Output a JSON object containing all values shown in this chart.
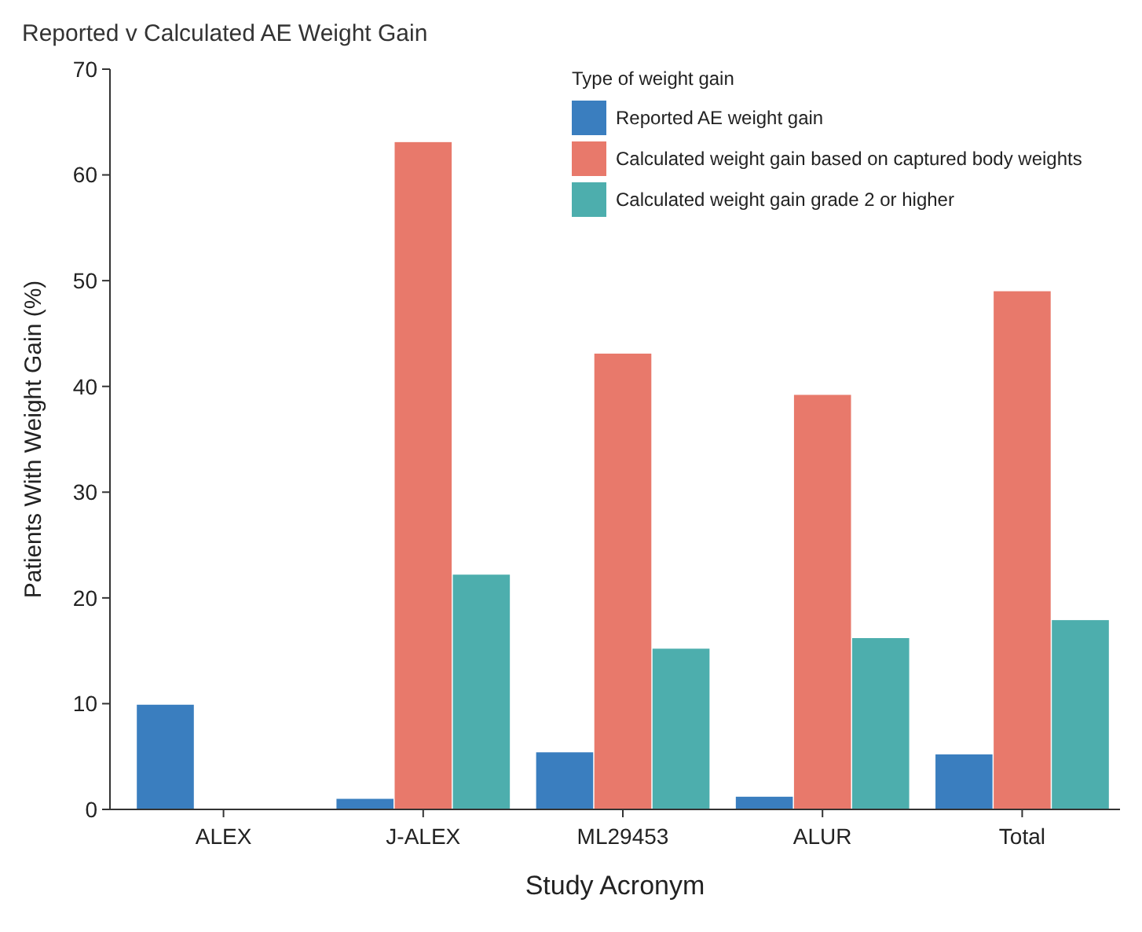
{
  "chart_data": {
    "type": "bar",
    "title": "Reported v Calculated AE Weight Gain",
    "xlabel": "Study Acronym",
    "ylabel": "Patients With Weight Gain (%)",
    "legend_title": "Type of weight gain",
    "legend": "top right",
    "categories": [
      "ALEX",
      "J-ALEX",
      "ML29453",
      "ALUR",
      "Total"
    ],
    "ylim": [
      0,
      70
    ],
    "yticks": [
      0,
      10,
      20,
      30,
      40,
      50,
      60,
      70
    ],
    "series": [
      {
        "name": "Reported AE weight gain",
        "color": "#3a7ebf",
        "values": [
          9.9,
          1.0,
          5.4,
          1.2,
          5.2
        ]
      },
      {
        "name": "Calculated weight gain based on captured body weights",
        "color": "#e8796b",
        "values": [
          null,
          63.1,
          43.1,
          39.2,
          49.0
        ]
      },
      {
        "name": "Calculated weight gain grade 2 or higher",
        "color": "#4daead",
        "values": [
          null,
          22.2,
          15.2,
          16.2,
          17.9
        ]
      }
    ]
  }
}
